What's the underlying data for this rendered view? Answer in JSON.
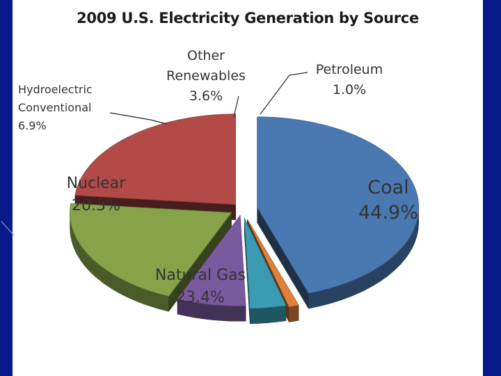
{
  "chart_data": {
    "type": "pie",
    "title": "2009 U.S. Electricity Generation by Source",
    "slices": [
      {
        "name": "Coal",
        "value": 44.9,
        "label": "44.9%",
        "color": "#4a78b0"
      },
      {
        "name": "Petroleum",
        "value": 1.0,
        "label": "1.0%",
        "color": "#e0803a"
      },
      {
        "name": "Other Renewables",
        "value": 3.6,
        "label": "3.6%",
        "color": "#3a9bb3",
        "label_lines": [
          "Other",
          "Renewables"
        ]
      },
      {
        "name": "Hydroelectric Conventional",
        "value": 6.9,
        "label": "6.9%",
        "color": "#7a5a9e",
        "label_lines": [
          "Hydroelectric",
          "Conventional"
        ]
      },
      {
        "name": "Nuclear",
        "value": 20.3,
        "label": "20.3%",
        "color": "#86a34a"
      },
      {
        "name": "Natural Gas",
        "value": 23.4,
        "label": "23.4%",
        "color": "#b24a48"
      }
    ]
  },
  "background_color": "#0a1f8f"
}
